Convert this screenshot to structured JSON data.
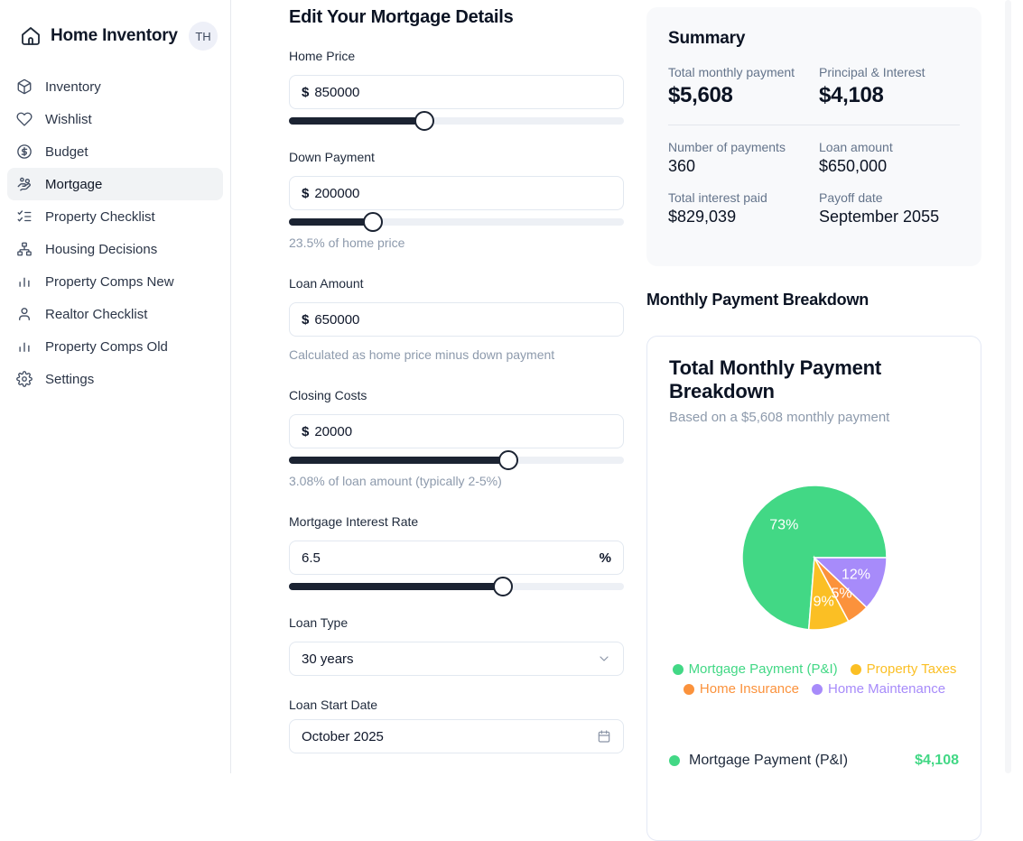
{
  "sidebar": {
    "app_title": "Home Inventory",
    "avatar_initials": "TH",
    "items": [
      {
        "label": "Inventory",
        "icon": "box",
        "active": false
      },
      {
        "label": "Wishlist",
        "icon": "heart",
        "active": false
      },
      {
        "label": "Budget",
        "icon": "dollar-circle",
        "active": false
      },
      {
        "label": "Mortgage",
        "icon": "hand-coins",
        "active": true
      },
      {
        "label": "Property Checklist",
        "icon": "checklist",
        "active": false
      },
      {
        "label": "Housing Decisions",
        "icon": "hierarchy",
        "active": false
      },
      {
        "label": "Property Comps New",
        "icon": "bar-chart",
        "active": false
      },
      {
        "label": "Realtor Checklist",
        "icon": "user",
        "active": false
      },
      {
        "label": "Property Comps Old",
        "icon": "bar-chart",
        "active": false
      },
      {
        "label": "Settings",
        "icon": "gear",
        "active": false
      }
    ]
  },
  "form": {
    "title": "Edit Your Mortgage Details",
    "fields": {
      "home_price": {
        "label": "Home Price",
        "prefix": "$",
        "value": "850000",
        "slider_percent": 40.4
      },
      "down_payment": {
        "label": "Down Payment",
        "prefix": "$",
        "value": "200000",
        "slider_percent": 25.1,
        "helper": "23.5% of home price"
      },
      "loan_amount": {
        "label": "Loan Amount",
        "prefix": "$",
        "value": "650000",
        "helper": "Calculated as home price minus down payment"
      },
      "closing_costs": {
        "label": "Closing Costs",
        "prefix": "$",
        "value": "20000",
        "slider_percent": 65.5,
        "helper": "3.08% of loan amount (typically 2-5%)"
      },
      "interest_rate": {
        "label": "Mortgage Interest Rate",
        "value": "6.5",
        "suffix": "%",
        "slider_percent": 64.0
      },
      "loan_type": {
        "label": "Loan Type",
        "value": "30 years"
      },
      "loan_start": {
        "label": "Loan Start Date",
        "value": "October 2025"
      }
    }
  },
  "summary": {
    "title": "Summary",
    "primary": [
      {
        "label": "Total monthly payment",
        "value": "$5,608"
      },
      {
        "label": "Principal & Interest",
        "value": "$4,108"
      }
    ],
    "secondary": [
      {
        "label": "Number of payments",
        "value": "360"
      },
      {
        "label": "Loan amount",
        "value": "$650,000"
      },
      {
        "label": "Total interest paid",
        "value": "$829,039"
      },
      {
        "label": "Payoff date",
        "value": "September 2055"
      }
    ]
  },
  "breakdown": {
    "section_title": "Monthly Payment Breakdown",
    "chart_data": {
      "type": "pie",
      "title": "Total Monthly Payment Breakdown",
      "subtitle": "Based on a $5,608 monthly payment",
      "start_angle_deg": 0,
      "direction": "counterclockwise",
      "legend_position": "bottom",
      "slices": [
        {
          "label": "Mortgage Payment (P&I)",
          "percent": 73,
          "display": "73%",
          "color": "#42d885"
        },
        {
          "label": "Property Taxes",
          "percent": 9,
          "display": "9%",
          "color": "#fbbf24"
        },
        {
          "label": "Home Insurance",
          "percent": 5,
          "display": "5%",
          "color": "#fb923c"
        },
        {
          "label": "Home Maintenance",
          "percent": 12,
          "display": "12%",
          "color": "#a78bfa"
        }
      ]
    },
    "items": [
      {
        "label": "Mortgage Payment (P&I)",
        "value": "$4,108",
        "color": "#42d885"
      }
    ]
  }
}
